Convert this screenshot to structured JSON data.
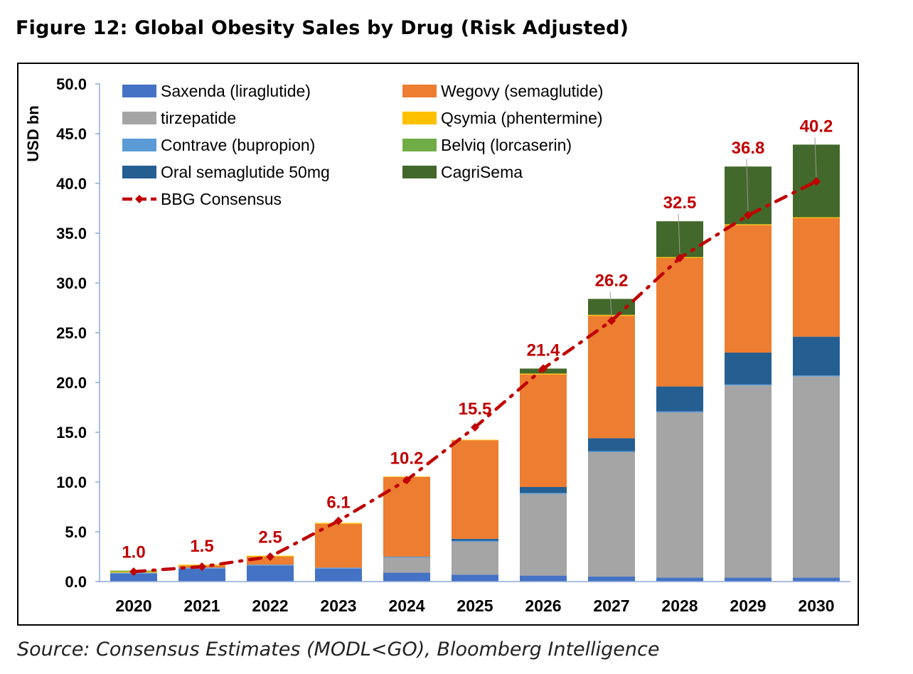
{
  "figure": {
    "title": "Figure 12: Global Obesity Sales by Drug (Risk Adjusted)",
    "source": "Source: Consensus Estimates (MODL<GO), Bloomberg Intelligence"
  },
  "chart_data": {
    "type": "bar",
    "stacked": true,
    "title": "",
    "ylabel": "USD bn",
    "xlabel": "",
    "ylim": [
      0,
      50
    ],
    "yticks": [
      0,
      5,
      10,
      15,
      20,
      25,
      30,
      35,
      40,
      45,
      50
    ],
    "ytick_labels": [
      "0.0",
      "5.0",
      "10.0",
      "15.0",
      "20.0",
      "25.0",
      "30.0",
      "35.0",
      "40.0",
      "45.0",
      "50.0"
    ],
    "grid": false,
    "legend_position": "top-left",
    "categories": [
      "2020",
      "2021",
      "2022",
      "2023",
      "2024",
      "2025",
      "2026",
      "2027",
      "2028",
      "2029",
      "2030"
    ],
    "series": [
      {
        "name": "Saxenda (liraglutide)",
        "color": "#4472C4",
        "values": [
          0.8,
          1.3,
          1.6,
          1.3,
          0.9,
          0.7,
          0.6,
          0.5,
          0.4,
          0.4,
          0.4
        ]
      },
      {
        "name": "tirzepatide",
        "color": "#A5A5A5",
        "values": [
          0,
          0,
          0,
          0,
          1.5,
          3.3,
          8.2,
          12.5,
          16.6,
          19.3,
          20.2
        ]
      },
      {
        "name": "Contrave (bupropion)",
        "color": "#5B9BD5",
        "values": [
          0.1,
          0.1,
          0.1,
          0.1,
          0.1,
          0.1,
          0.1,
          0.1,
          0.1,
          0.1,
          0.1
        ]
      },
      {
        "name": "Oral semaglutide 50mg",
        "color": "#255E91",
        "values": [
          0,
          0,
          0,
          0,
          0,
          0.2,
          0.6,
          1.3,
          2.5,
          3.2,
          3.9
        ]
      },
      {
        "name": "Wegovy (semaglutide)",
        "color": "#ED7D31",
        "values": [
          0,
          0.2,
          0.8,
          4.4,
          8.0,
          9.9,
          11.3,
          12.3,
          12.9,
          12.8,
          11.9
        ]
      },
      {
        "name": "Qsymia (phentermine)",
        "color": "#FFC000",
        "values": [
          0.1,
          0.1,
          0.1,
          0.1,
          0.05,
          0.05,
          0.1,
          0.1,
          0.1,
          0.1,
          0.1
        ]
      },
      {
        "name": "Belviq (lorcaserin)",
        "color": "#70AD47",
        "values": [
          0.1,
          0,
          0,
          0,
          0,
          0,
          0,
          0,
          0,
          0,
          0
        ]
      },
      {
        "name": "CagriSema",
        "color": "#43682B",
        "values": [
          0,
          0,
          0,
          0,
          0,
          0,
          0.5,
          1.6,
          3.6,
          5.8,
          7.3
        ]
      }
    ],
    "consensus": {
      "name": "BBG Consensus",
      "color": "#C00000",
      "values": [
        1.0,
        1.5,
        2.5,
        6.1,
        10.2,
        15.5,
        21.4,
        26.2,
        32.5,
        36.8,
        40.2
      ],
      "labels": [
        "1.0",
        "1.5",
        "2.5",
        "6.1",
        "10.2",
        "15.5",
        "21.4",
        "26.2",
        "32.5",
        "36.8",
        "40.2"
      ]
    }
  }
}
